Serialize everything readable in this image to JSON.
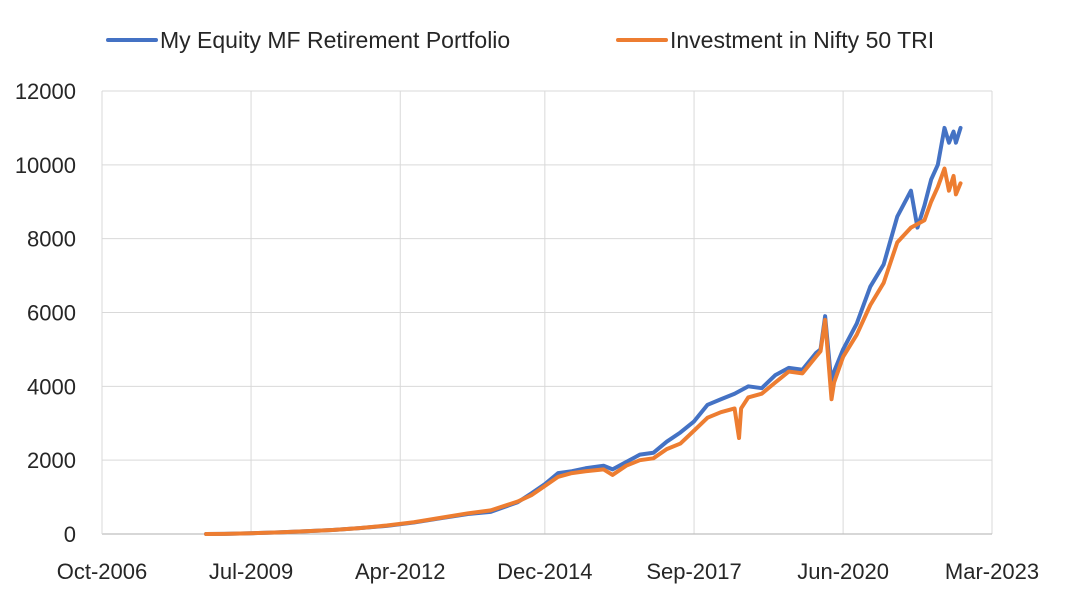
{
  "chart_data": {
    "type": "line",
    "title": "",
    "xlabel": "",
    "ylabel": "",
    "x_axis": {
      "type": "date",
      "min": "2006-10-01",
      "max": "2023-03-01",
      "tick_labels": [
        "Oct-2006",
        "Jul-2009",
        "Apr-2012",
        "Dec-2014",
        "Sep-2017",
        "Jun-2020",
        "Mar-2023"
      ],
      "tick_dates": [
        "2006-10-01",
        "2009-07-01",
        "2012-04-01",
        "2014-12-01",
        "2017-09-01",
        "2020-06-01",
        "2023-03-01"
      ]
    },
    "y_axis": {
      "min": 0,
      "max": 12000,
      "ticks": [
        0,
        2000,
        4000,
        6000,
        8000,
        10000,
        12000
      ],
      "tick_labels": [
        "0",
        "2000",
        "4000",
        "6000",
        "8000",
        "10000",
        "12000"
      ]
    },
    "grid": true,
    "legend_position": "top",
    "series": [
      {
        "name": "My Equity MF Retirement Portfolio",
        "color": "#4472C4",
        "points": [
          [
            "2008-09-01",
            0
          ],
          [
            "2009-01-01",
            5
          ],
          [
            "2009-07-01",
            20
          ],
          [
            "2010-01-01",
            45
          ],
          [
            "2010-07-01",
            75
          ],
          [
            "2011-01-01",
            110
          ],
          [
            "2011-07-01",
            160
          ],
          [
            "2012-01-01",
            220
          ],
          [
            "2012-07-01",
            310
          ],
          [
            "2013-01-01",
            430
          ],
          [
            "2013-07-01",
            540
          ],
          [
            "2013-12-01",
            600
          ],
          [
            "2014-06-01",
            860
          ],
          [
            "2014-09-01",
            1100
          ],
          [
            "2014-12-01",
            1350
          ],
          [
            "2015-03-01",
            1650
          ],
          [
            "2015-06-01",
            1700
          ],
          [
            "2015-09-01",
            1780
          ],
          [
            "2016-01-01",
            1850
          ],
          [
            "2016-03-01",
            1750
          ],
          [
            "2016-06-01",
            1950
          ],
          [
            "2016-09-01",
            2150
          ],
          [
            "2016-12-01",
            2200
          ],
          [
            "2017-03-01",
            2500
          ],
          [
            "2017-06-01",
            2750
          ],
          [
            "2017-09-01",
            3050
          ],
          [
            "2017-12-01",
            3500
          ],
          [
            "2018-03-01",
            3650
          ],
          [
            "2018-06-01",
            3800
          ],
          [
            "2018-09-01",
            4000
          ],
          [
            "2018-12-01",
            3950
          ],
          [
            "2019-03-01",
            4300
          ],
          [
            "2019-06-01",
            4500
          ],
          [
            "2019-09-01",
            4450
          ],
          [
            "2019-12-01",
            4900
          ],
          [
            "2020-01-01",
            5000
          ],
          [
            "2020-02-01",
            5900
          ],
          [
            "2020-03-15",
            4050
          ],
          [
            "2020-04-01",
            4400
          ],
          [
            "2020-06-01",
            5000
          ],
          [
            "2020-09-01",
            5700
          ],
          [
            "2020-12-01",
            6700
          ],
          [
            "2021-03-01",
            7300
          ],
          [
            "2021-06-01",
            8600
          ],
          [
            "2021-09-01",
            9300
          ],
          [
            "2021-10-15",
            8300
          ],
          [
            "2021-12-01",
            8900
          ],
          [
            "2022-01-15",
            9600
          ],
          [
            "2022-03-01",
            10000
          ],
          [
            "2022-04-15",
            11000
          ],
          [
            "2022-05-15",
            10600
          ],
          [
            "2022-06-15",
            10900
          ],
          [
            "2022-07-01",
            10600
          ],
          [
            "2022-08-01",
            11000
          ]
        ]
      },
      {
        "name": "Investment in Nifty 50 TRI",
        "color": "#ED7D31",
        "points": [
          [
            "2008-09-01",
            0
          ],
          [
            "2009-01-01",
            5
          ],
          [
            "2009-07-01",
            20
          ],
          [
            "2010-01-01",
            45
          ],
          [
            "2010-07-01",
            75
          ],
          [
            "2011-01-01",
            110
          ],
          [
            "2011-07-01",
            160
          ],
          [
            "2012-01-01",
            230
          ],
          [
            "2012-07-01",
            320
          ],
          [
            "2013-01-01",
            440
          ],
          [
            "2013-07-01",
            560
          ],
          [
            "2013-12-01",
            640
          ],
          [
            "2014-06-01",
            880
          ],
          [
            "2014-09-01",
            1050
          ],
          [
            "2014-12-01",
            1300
          ],
          [
            "2015-03-01",
            1550
          ],
          [
            "2015-06-01",
            1650
          ],
          [
            "2015-09-01",
            1700
          ],
          [
            "2016-01-01",
            1750
          ],
          [
            "2016-03-01",
            1600
          ],
          [
            "2016-06-01",
            1850
          ],
          [
            "2016-09-01",
            2000
          ],
          [
            "2016-12-01",
            2050
          ],
          [
            "2017-03-01",
            2300
          ],
          [
            "2017-06-01",
            2450
          ],
          [
            "2017-09-01",
            2800
          ],
          [
            "2017-12-01",
            3150
          ],
          [
            "2018-03-01",
            3300
          ],
          [
            "2018-06-01",
            3400
          ],
          [
            "2018-07-01",
            2600
          ],
          [
            "2018-07-15",
            3400
          ],
          [
            "2018-09-01",
            3700
          ],
          [
            "2018-12-01",
            3800
          ],
          [
            "2019-03-01",
            4100
          ],
          [
            "2019-06-01",
            4400
          ],
          [
            "2019-09-01",
            4350
          ],
          [
            "2019-12-01",
            4800
          ],
          [
            "2020-01-01",
            4950
          ],
          [
            "2020-02-01",
            5800
          ],
          [
            "2020-03-15",
            3650
          ],
          [
            "2020-04-01",
            4100
          ],
          [
            "2020-06-01",
            4800
          ],
          [
            "2020-09-01",
            5400
          ],
          [
            "2020-12-01",
            6200
          ],
          [
            "2021-03-01",
            6800
          ],
          [
            "2021-06-01",
            7900
          ],
          [
            "2021-09-01",
            8300
          ],
          [
            "2021-12-01",
            8500
          ],
          [
            "2022-01-15",
            9000
          ],
          [
            "2022-03-01",
            9400
          ],
          [
            "2022-04-15",
            9900
          ],
          [
            "2022-05-15",
            9300
          ],
          [
            "2022-06-15",
            9700
          ],
          [
            "2022-07-01",
            9200
          ],
          [
            "2022-08-01",
            9500
          ]
        ]
      }
    ]
  }
}
